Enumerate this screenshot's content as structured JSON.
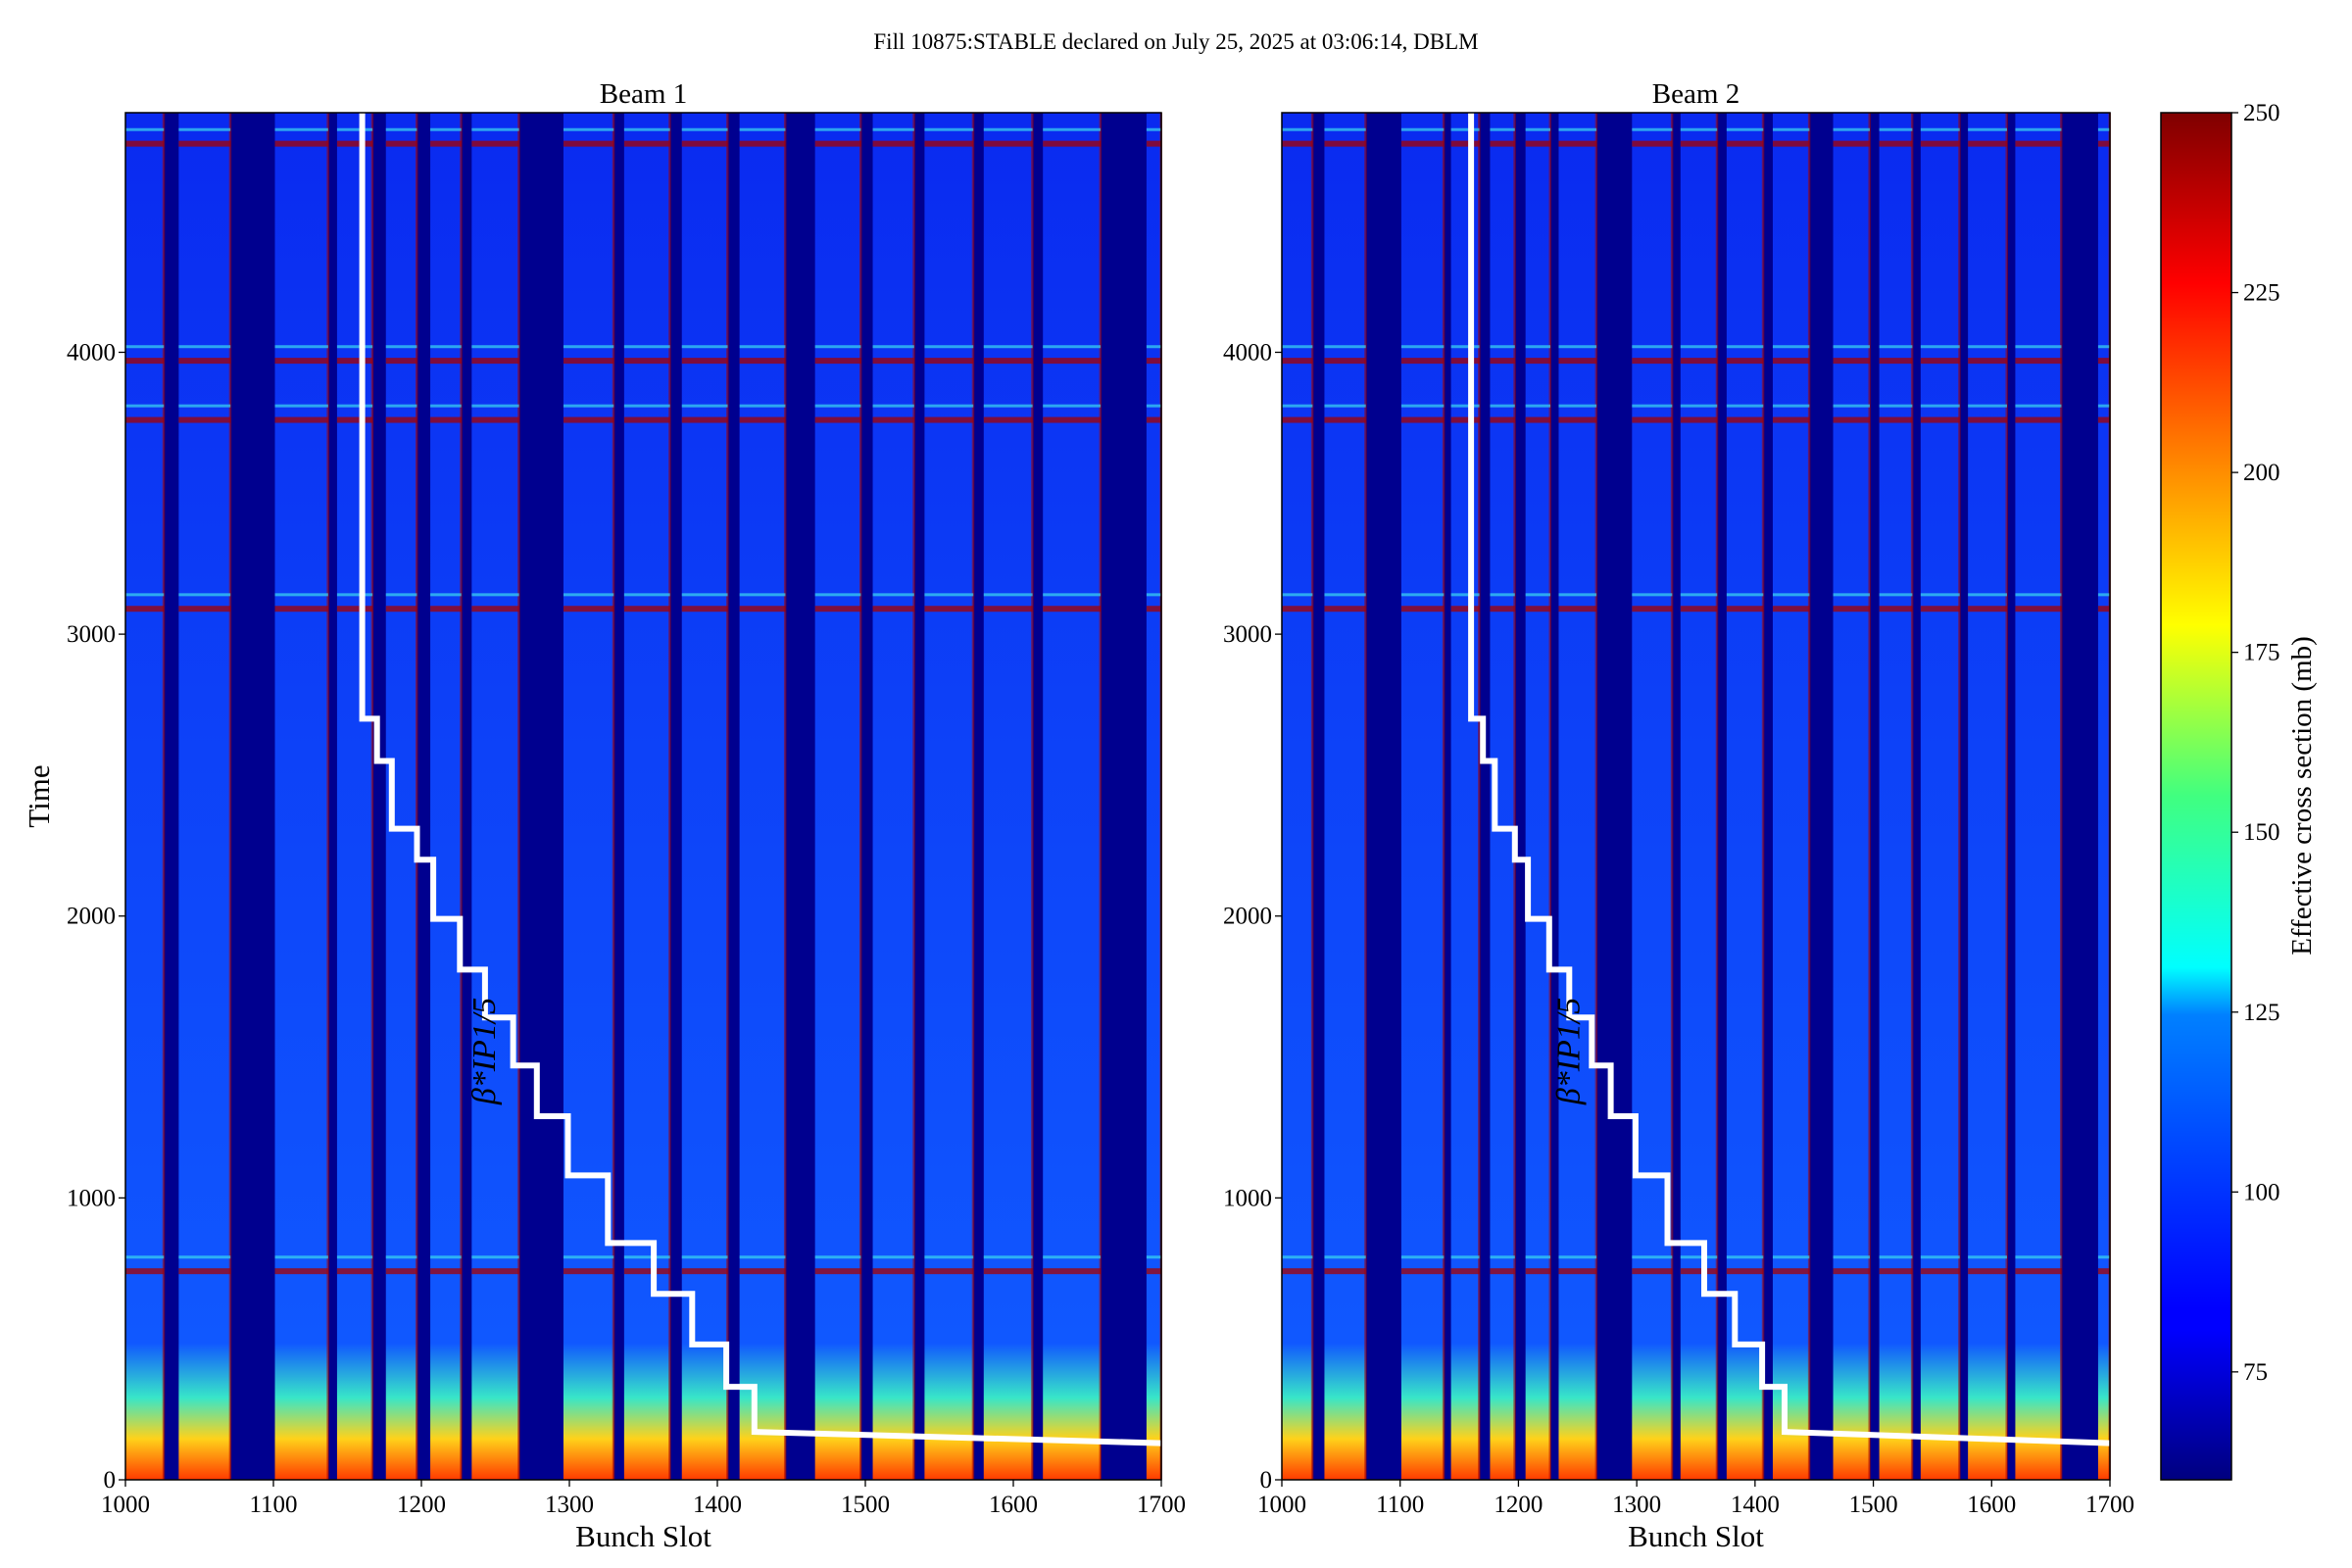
{
  "figure": {
    "suptitle": "Fill 10875:STABLE declared on July 25, 2025 at 03:06:14, DBLM"
  },
  "colors": {
    "bar_low": "#00008f",
    "bar_mid": "#0a24f2",
    "line": "#ffffff",
    "hot": "#a50000"
  },
  "colorbar": {
    "label": "Effective cross section (mb)",
    "range": [
      60,
      250
    ],
    "ticks": [
      75,
      100,
      125,
      150,
      175,
      200,
      225,
      250
    ],
    "colormap": "jet"
  },
  "chart_data": [
    {
      "type": "heatmap",
      "title": "Beam 1",
      "xlabel": "Bunch Slot",
      "ylabel": "Time",
      "xlim": [
        1000,
        1700
      ],
      "ylim": [
        0,
        4850
      ],
      "xticks": [
        1000,
        1100,
        1200,
        1300,
        1400,
        1500,
        1600,
        1700
      ],
      "yticks": [
        0,
        1000,
        2000,
        3000,
        4000
      ],
      "filled_slot_ranges": [
        [
          1000,
          1026
        ],
        [
          1036,
          1071
        ],
        [
          1101,
          1137
        ],
        [
          1143,
          1167
        ],
        [
          1176,
          1197
        ],
        [
          1206,
          1227
        ],
        [
          1234,
          1266
        ],
        [
          1296,
          1330
        ],
        [
          1337,
          1368
        ],
        [
          1376,
          1407
        ],
        [
          1415,
          1446
        ],
        [
          1466,
          1497
        ],
        [
          1505,
          1533
        ],
        [
          1540,
          1573
        ],
        [
          1580,
          1613
        ],
        [
          1620,
          1659
        ],
        [
          1690,
          1700
        ]
      ],
      "hot_time_bands": [
        4740,
        3970,
        3760,
        3090,
        740
      ],
      "beta_star_label": "β*IP1/5",
      "beta_star_steps": {
        "x": [
          1160,
          1160,
          1170,
          1170,
          1180,
          1180,
          1197,
          1197,
          1208,
          1208,
          1226,
          1226,
          1243,
          1243,
          1262,
          1262,
          1278,
          1278,
          1299,
          1299,
          1326,
          1326,
          1357,
          1357,
          1383,
          1383,
          1406,
          1406,
          1425,
          1425,
          1700
        ],
        "y": [
          4850,
          2700,
          2700,
          2550,
          2550,
          2310,
          2310,
          2200,
          2200,
          1990,
          1990,
          1810,
          1810,
          1640,
          1640,
          1470,
          1470,
          1290,
          1290,
          1080,
          1080,
          840,
          840,
          660,
          660,
          480,
          480,
          330,
          330,
          170,
          130
        ]
      }
    },
    {
      "type": "heatmap",
      "title": "Beam 2",
      "xlabel": "Bunch Slot",
      "ylabel": "",
      "xlim": [
        1000,
        1700
      ],
      "ylim": [
        0,
        4850
      ],
      "xticks": [
        1000,
        1100,
        1200,
        1300,
        1400,
        1500,
        1600,
        1700
      ],
      "yticks": [
        0,
        1000,
        2000,
        3000,
        4000
      ],
      "filled_slot_ranges": [
        [
          1000,
          1026
        ],
        [
          1036,
          1071
        ],
        [
          1101,
          1137
        ],
        [
          1143,
          1167
        ],
        [
          1176,
          1197
        ],
        [
          1206,
          1227
        ],
        [
          1234,
          1266
        ],
        [
          1296,
          1330
        ],
        [
          1337,
          1368
        ],
        [
          1376,
          1407
        ],
        [
          1415,
          1446
        ],
        [
          1466,
          1497
        ],
        [
          1505,
          1533
        ],
        [
          1540,
          1573
        ],
        [
          1580,
          1613
        ],
        [
          1620,
          1659
        ],
        [
          1690,
          1700
        ]
      ],
      "hot_time_bands": [
        4740,
        3970,
        3760,
        3090,
        740
      ],
      "beta_star_label": "β*IP1/5",
      "beta_star_steps": {
        "x": [
          1160,
          1160,
          1170,
          1170,
          1180,
          1180,
          1197,
          1197,
          1208,
          1208,
          1226,
          1226,
          1243,
          1243,
          1262,
          1262,
          1278,
          1278,
          1299,
          1299,
          1326,
          1326,
          1357,
          1357,
          1383,
          1383,
          1406,
          1406,
          1425,
          1425,
          1700
        ],
        "y": [
          4850,
          2700,
          2700,
          2550,
          2550,
          2310,
          2310,
          2200,
          2200,
          1990,
          1990,
          1810,
          1810,
          1640,
          1640,
          1470,
          1470,
          1290,
          1290,
          1080,
          1080,
          840,
          840,
          660,
          660,
          480,
          480,
          330,
          330,
          170,
          130
        ]
      }
    }
  ]
}
